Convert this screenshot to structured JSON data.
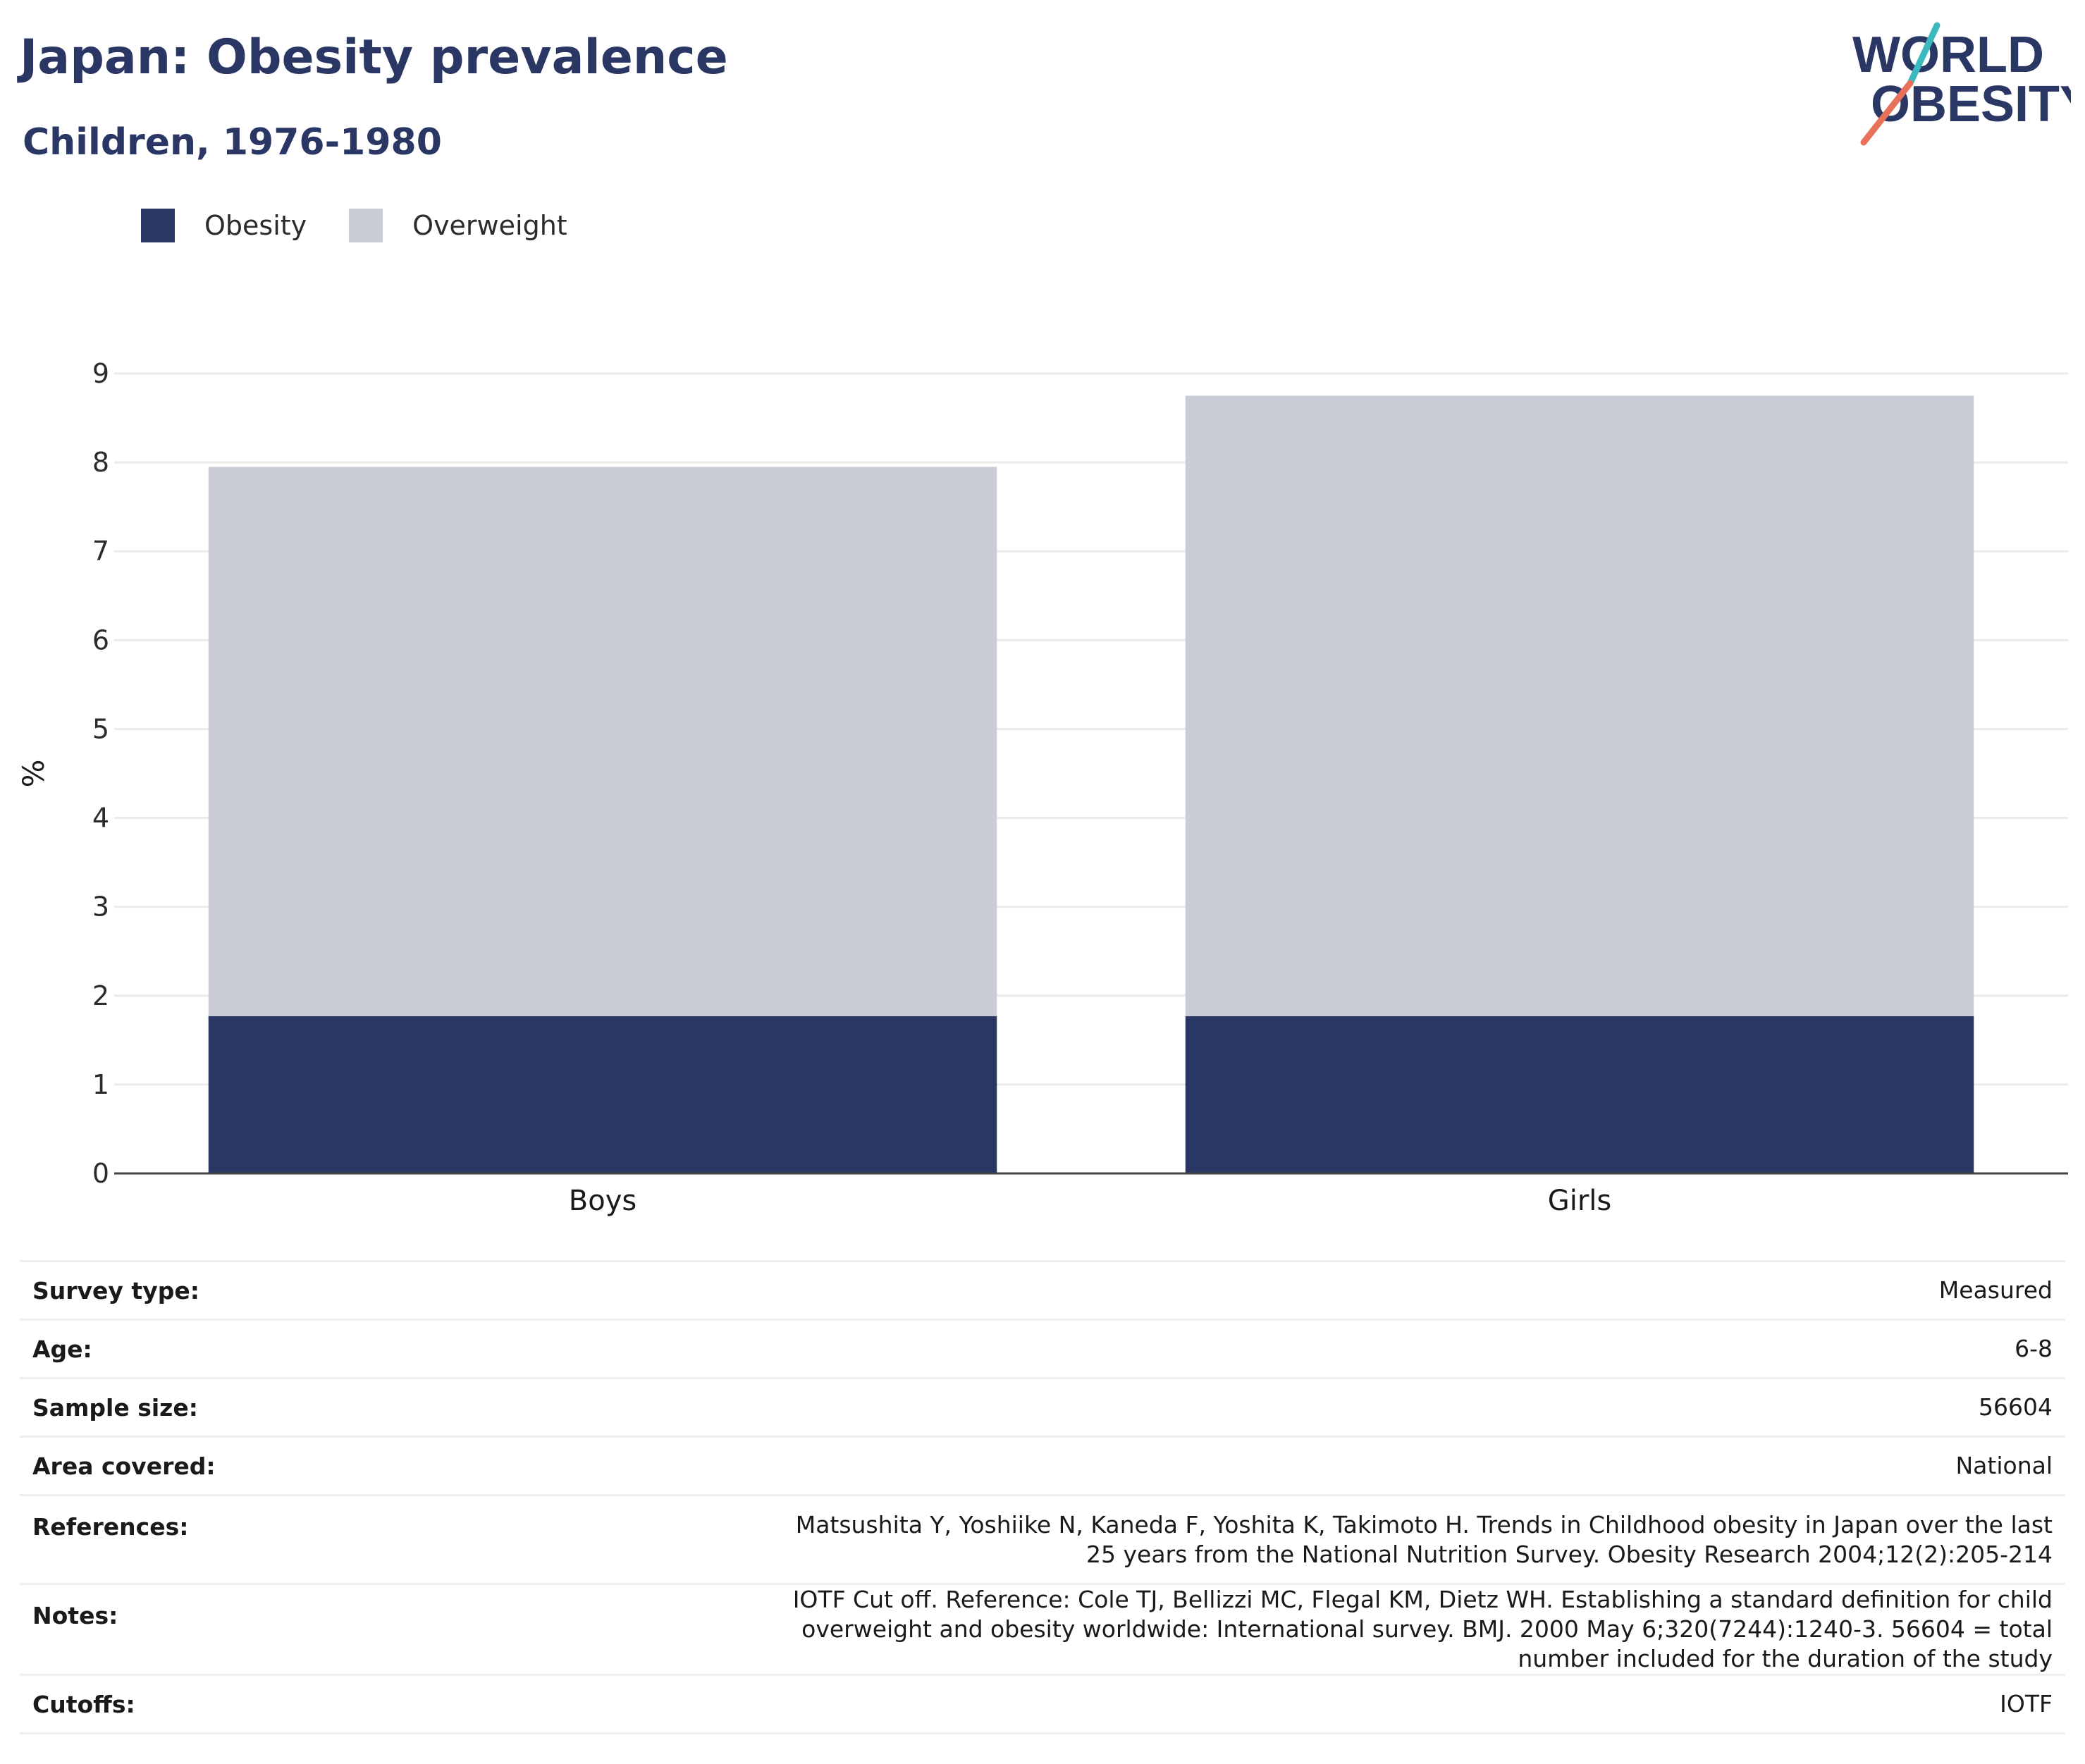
{
  "header": {
    "title": "Japan: Obesity prevalence",
    "subtitle": "Children, 1976-1980",
    "logo": {
      "line1": "WORLD",
      "line2": "OBESITY"
    }
  },
  "colors": {
    "obesity": "#2a3663",
    "overweight": "#cacdd8",
    "title": "#2a3663",
    "logo_slash_top": "#3bb9bf",
    "logo_slash_bottom": "#e8715a"
  },
  "chart_data": {
    "type": "bar",
    "stacked": true,
    "categories": [
      "Boys",
      "Girls"
    ],
    "series": [
      {
        "name": "Obesity",
        "values": [
          1.77,
          1.77
        ]
      },
      {
        "name": "Overweight",
        "values": [
          6.18,
          6.98
        ]
      }
    ],
    "title": "",
    "xlabel": "",
    "ylabel": "%",
    "ylim": [
      0,
      9
    ],
    "yticks": [
      0,
      1,
      2,
      3,
      4,
      5,
      6,
      7,
      8,
      9
    ],
    "grid": true,
    "legend": "top-left"
  },
  "meta": [
    {
      "key": "Survey type:",
      "value": "Measured"
    },
    {
      "key": "Age:",
      "value": "6-8"
    },
    {
      "key": "Sample size:",
      "value": "56604"
    },
    {
      "key": "Area covered:",
      "value": "National"
    },
    {
      "key": "References:",
      "value": "Matsushita Y, Yoshiike N, Kaneda F, Yoshita K, Takimoto H. Trends in Childhood obesity in Japan over the last 25 years from the National Nutrition Survey. Obesity Research 2004;12(2):205-214"
    },
    {
      "key": "Notes:",
      "value": "IOTF Cut off. Reference: Cole TJ, Bellizzi MC, Flegal KM, Dietz WH. Establishing a standard definition for child overweight and obesity worldwide: International survey. BMJ. 2000 May 6;320(7244):1240-3. 56604 = total number included for the duration of the study"
    },
    {
      "key": "Cutoffs:",
      "value": "IOTF"
    }
  ]
}
